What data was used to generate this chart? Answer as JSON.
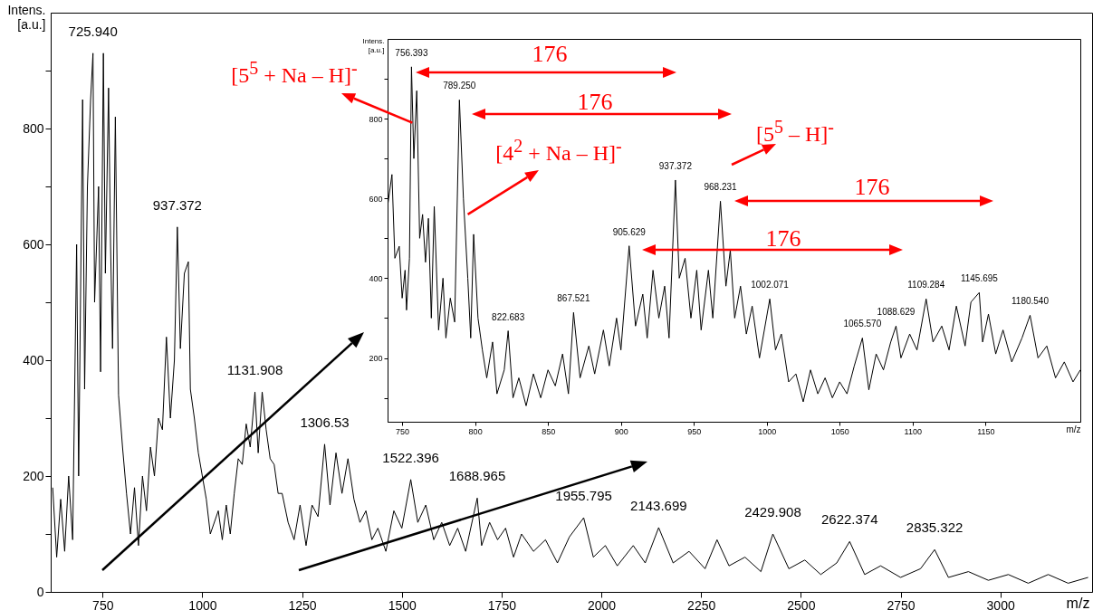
{
  "chart_data": [
    {
      "type": "line",
      "xlabel": "m/z",
      "ylabel": "Intens. [a.u.]",
      "x": [
        625,
        635,
        645,
        655,
        665,
        675,
        685,
        690,
        700,
        705,
        712,
        720,
        725.94,
        730,
        740,
        745,
        752,
        757,
        765,
        770,
        775,
        782,
        790,
        800,
        810,
        820,
        830,
        840,
        850,
        860,
        870,
        880,
        890,
        900,
        910,
        920,
        930,
        937.372,
        945,
        955,
        965,
        970,
        980,
        990,
        1000,
        1010,
        1020,
        1040,
        1050,
        1060,
        1070,
        1080,
        1090,
        1100,
        1110,
        1120,
        1131.908,
        1140,
        1150,
        1160,
        1170,
        1180,
        1190,
        1200,
        1215,
        1230,
        1245,
        1260,
        1275,
        1290,
        1306.53,
        1320,
        1335,
        1350,
        1365,
        1380,
        1395,
        1410,
        1425,
        1440,
        1460,
        1480,
        1500,
        1522.396,
        1540,
        1560,
        1580,
        1600,
        1620,
        1640,
        1660,
        1688.965,
        1700,
        1720,
        1740,
        1760,
        1780,
        1800,
        1830,
        1860,
        1890,
        1920,
        1955.795,
        1980,
        2010,
        2040,
        2080,
        2110,
        2143.699,
        2180,
        2220,
        2260,
        2290,
        2320,
        2360,
        2400,
        2429.908,
        2470,
        2510,
        2550,
        2590,
        2622.374,
        2660,
        2700,
        2750,
        2800,
        2835.322,
        2870,
        2920,
        2970,
        3020,
        3070,
        3120,
        3170,
        3220
      ],
      "series": [
        {
          "color": "#000000",
          "values": [
            180,
            60,
            160,
            70,
            200,
            90,
            600,
            200,
            850,
            350,
            700,
            850,
            930,
            500,
            700,
            380,
            930,
            550,
            870,
            600,
            420,
            820,
            340,
            250,
            170,
            100,
            180,
            80,
            200,
            140,
            250,
            200,
            300,
            280,
            440,
            300,
            400,
            630,
            420,
            550,
            570,
            350,
            300,
            240,
            200,
            160,
            100,
            140,
            90,
            150,
            100,
            170,
            230,
            220,
            290,
            250,
            345,
            240,
            345,
            280,
            230,
            220,
            170,
            170,
            120,
            90,
            150,
            80,
            150,
            130,
            255,
            150,
            240,
            170,
            230,
            160,
            120,
            140,
            90,
            110,
            70,
            140,
            110,
            194,
            120,
            150,
            90,
            120,
            80,
            110,
            70,
            162,
            80,
            120,
            90,
            110,
            60,
            100,
            70,
            90,
            50,
            95,
            128,
            60,
            80,
            45,
            80,
            50,
            111,
            50,
            70,
            40,
            90,
            45,
            60,
            35,
            100,
            40,
            55,
            30,
            50,
            87,
            30,
            45,
            25,
            40,
            73,
            25,
            35,
            20,
            30,
            15,
            30,
            15,
            25
          ]
        }
      ],
      "xlim": [
        620,
        3230
      ],
      "xticks": [
        750,
        1000,
        1250,
        1500,
        1750,
        2000,
        2250,
        2500,
        2750,
        3000
      ],
      "ylim": [
        0,
        1000
      ],
      "yticks": [
        0,
        {
          "value": 100,
          "label": null
        },
        200,
        {
          "value": 300,
          "label": null
        },
        400,
        {
          "value": 500,
          "label": null
        },
        600,
        {
          "value": 700,
          "label": null
        },
        800,
        {
          "value": 900,
          "label": null
        }
      ],
      "annotations": [
        {
          "text": "725.940",
          "x": 725.94,
          "y": 930
        },
        {
          "text": "937.372",
          "x": 937.372,
          "y": 630
        },
        {
          "text": "1131.908",
          "x": 1131.908,
          "y": 345
        },
        {
          "text": "1306.53",
          "x": 1306.53,
          "y": 255
        },
        {
          "text": "1522.396",
          "x": 1522.396,
          "y": 194
        },
        {
          "text": "1688.965",
          "x": 1688.965,
          "y": 162
        },
        {
          "text": "1955.795",
          "x": 1955.795,
          "y": 128
        },
        {
          "text": "2143.699",
          "x": 2143.699,
          "y": 111
        },
        {
          "text": "2429.908",
          "x": 2429.908,
          "y": 100
        },
        {
          "text": "2622.374",
          "x": 2622.374,
          "y": 87
        },
        {
          "text": "2835.322",
          "x": 2835.322,
          "y": 73
        }
      ]
    },
    {
      "type": "line",
      "xlabel": "m/z",
      "ylabel": "Intens. [a.u.]",
      "x": [
        740,
        743,
        745,
        748,
        750,
        752,
        753,
        755,
        756.393,
        758,
        760,
        762,
        764,
        766,
        768,
        770,
        772,
        775,
        778,
        780,
        783,
        786,
        789.25,
        792,
        795,
        797,
        799,
        802,
        805,
        808,
        812,
        815,
        820,
        822.683,
        826,
        830,
        835,
        840,
        845,
        850,
        855,
        860,
        864,
        867.521,
        872,
        878,
        882,
        888,
        892,
        897,
        900,
        905.629,
        910,
        915,
        918,
        922,
        926,
        930,
        933,
        937.372,
        940,
        944,
        948,
        952,
        955,
        960,
        963,
        968.231,
        972,
        975,
        978,
        982,
        986,
        990,
        995,
        1002.071,
        1006,
        1010,
        1015,
        1020,
        1025,
        1030,
        1035,
        1040,
        1045,
        1050,
        1055,
        1060,
        1065.57,
        1070,
        1075,
        1080,
        1085,
        1088.629,
        1092,
        1098,
        1103,
        1109.284,
        1114,
        1120,
        1125,
        1130,
        1136,
        1140,
        1145.695,
        1148,
        1152,
        1157,
        1162,
        1168,
        1175,
        1180.54,
        1186,
        1192,
        1198,
        1204,
        1210,
        1215
      ],
      "series": [
        {
          "color": "#000000",
          "values": [
            580,
            660,
            450,
            480,
            350,
            420,
            320,
            450,
            930,
            700,
            870,
            500,
            560,
            440,
            550,
            300,
            580,
            270,
            400,
            250,
            350,
            290,
            847,
            600,
            400,
            250,
            510,
            300,
            220,
            150,
            240,
            110,
            170,
            268,
            100,
            150,
            80,
            160,
            100,
            170,
            130,
            210,
            110,
            314,
            150,
            230,
            160,
            270,
            180,
            300,
            220,
            481,
            280,
            360,
            250,
            420,
            300,
            380,
            250,
            646,
            400,
            450,
            300,
            420,
            270,
            420,
            300,
            593,
            380,
            470,
            300,
            380,
            260,
            330,
            200,
            348,
            220,
            260,
            140,
            160,
            90,
            170,
            110,
            150,
            100,
            140,
            110,
            180,
            250,
            120,
            210,
            170,
            240,
            280,
            200,
            260,
            220,
            348,
            240,
            280,
            220,
            330,
            230,
            340,
            364,
            240,
            310,
            210,
            270,
            190,
            250,
            307,
            200,
            230,
            150,
            190,
            140,
            170
          ]
        }
      ],
      "xlim": [
        740,
        1215
      ],
      "xticks": [
        750,
        800,
        850,
        900,
        950,
        1000,
        1050,
        1100,
        1150
      ],
      "ylim": [
        40,
        1000
      ],
      "yticks": [
        {
          "value": 100,
          "label": null
        },
        200,
        {
          "value": 300,
          "label": null
        },
        400,
        {
          "value": 500,
          "label": null
        },
        600,
        {
          "value": 700,
          "label": null
        },
        800,
        {
          "value": 900,
          "label": null
        }
      ],
      "annotations": [
        {
          "text": "756.393",
          "x": 756.393,
          "y": 930
        },
        {
          "text": "789.250",
          "x": 789.25,
          "y": 847
        },
        {
          "text": "822.683",
          "x": 822.683,
          "y": 268
        },
        {
          "text": "867.521",
          "x": 867.521,
          "y": 314
        },
        {
          "text": "905.629",
          "x": 905.629,
          "y": 481
        },
        {
          "text": "937.372",
          "x": 937.372,
          "y": 646
        },
        {
          "text": "968.231",
          "x": 968.231,
          "y": 593
        },
        {
          "text": "1002.071",
          "x": 1002.071,
          "y": 348
        },
        {
          "text": "1065.570",
          "x": 1065.57,
          "y": 250
        },
        {
          "text": "1088.629",
          "x": 1088.629,
          "y": 280
        },
        {
          "text": "1109.284",
          "x": 1109.284,
          "y": 348
        },
        {
          "text": "1145.695",
          "x": 1145.695,
          "y": 364
        },
        {
          "text": "1180.540",
          "x": 1180.54,
          "y": 307
        },
        {
          "text": "[5$^{5}$ + Na – H]$^{-}$",
          "x": 757,
          "y": 790
        },
        "176",
        "176",
        {
          "text": "[4$^{2}$ + Na – H]$^{-}$",
          "x": 795,
          "y": 560
        },
        "[5$^{5}$ – H]$^{-}$",
        "176",
        "176"
      ]
    }
  ]
}
